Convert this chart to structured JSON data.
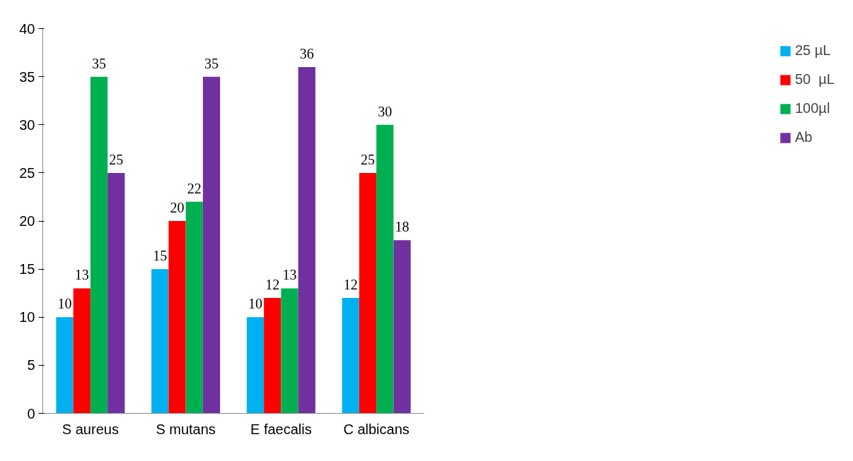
{
  "chart_data": {
    "type": "bar",
    "categories": [
      "S aureus",
      "S mutans",
      "E faecalis",
      "C albicans"
    ],
    "series": [
      {
        "name": "25 µL",
        "color": "#00b0f0",
        "values": [
          10,
          15,
          10,
          12
        ]
      },
      {
        "name": "50  µL",
        "color": "#ff0000",
        "values": [
          13,
          20,
          12,
          25
        ]
      },
      {
        "name": "100µl",
        "color": "#00b050",
        "values": [
          35,
          22,
          13,
          30
        ]
      },
      {
        "name": "Ab",
        "color": "#7030a0",
        "values": [
          25,
          35,
          36,
          18
        ]
      }
    ],
    "ylim": [
      0,
      40
    ],
    "yticks": [
      0,
      5,
      10,
      15,
      20,
      25,
      30,
      35,
      40
    ],
    "grid": false,
    "legend": "right",
    "data_labels": true
  }
}
